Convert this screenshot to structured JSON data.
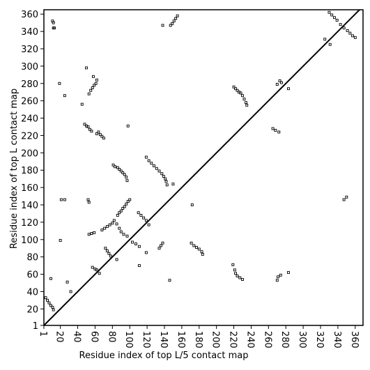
{
  "chart_data": {
    "type": "scatter",
    "x_label": "Residue index of top L/5 contact map",
    "y_label": "Residue index of top L contact map",
    "color": "#000000",
    "diagonal": true,
    "xlim": [
      1,
      369
    ],
    "ylim": [
      1,
      365
    ],
    "xticks": [
      1,
      20,
      40,
      60,
      80,
      100,
      120,
      140,
      160,
      180,
      200,
      220,
      240,
      260,
      280,
      300,
      320,
      340,
      360
    ],
    "yticks": [
      1,
      20,
      40,
      60,
      80,
      100,
      120,
      140,
      160,
      180,
      200,
      220,
      240,
      260,
      280,
      300,
      320,
      340,
      360
    ],
    "x": [
      11,
      12,
      12,
      13,
      45,
      50,
      53,
      55,
      57,
      59,
      61,
      62,
      58,
      48,
      50,
      52,
      54,
      56,
      62,
      64,
      66,
      68,
      70,
      98,
      147,
      149,
      151,
      153,
      155,
      138,
      81,
      83,
      86,
      88,
      90,
      92,
      94,
      96,
      97,
      119,
      122,
      125,
      128,
      131,
      134,
      137,
      139,
      141,
      142,
      143,
      150,
      86,
      88,
      90,
      92,
      94,
      96,
      98,
      100,
      52,
      53,
      21,
      25,
      68,
      71,
      74,
      77,
      80,
      53,
      56,
      59,
      220,
      222,
      224,
      226,
      228,
      230,
      232,
      234,
      235,
      270,
      273,
      275,
      265,
      268,
      272,
      283,
      325,
      331,
      330,
      333,
      336,
      339,
      343,
      347,
      351,
      354,
      357,
      360,
      19,
      25,
      3,
      5,
      7,
      9,
      11,
      12,
      9,
      28,
      32,
      20,
      57,
      60,
      62,
      65,
      72,
      74,
      76,
      78,
      85,
      82,
      85,
      88,
      90,
      93,
      97,
      103,
      107,
      111,
      110,
      113,
      116,
      119,
      122,
      119,
      111,
      134,
      136,
      138,
      146,
      171,
      174,
      177,
      180,
      183,
      184,
      172,
      219,
      221,
      222,
      224,
      227,
      230,
      270,
      271,
      274,
      283,
      347,
      350
    ],
    "values": [
      352,
      350,
      344,
      344,
      256,
      298,
      268,
      272,
      275,
      278,
      280,
      284,
      288,
      233,
      231,
      230,
      227,
      225,
      222,
      224,
      221,
      219,
      217,
      231,
      347,
      349,
      352,
      355,
      358,
      347,
      186,
      184,
      183,
      181,
      179,
      177,
      175,
      172,
      168,
      195,
      191,
      188,
      185,
      182,
      179,
      176,
      173,
      170,
      167,
      163,
      164,
      128,
      131,
      133,
      136,
      138,
      141,
      144,
      146,
      146,
      143,
      146,
      146,
      111,
      113,
      115,
      117,
      119,
      106,
      107,
      108,
      276,
      274,
      272,
      270,
      269,
      266,
      262,
      258,
      255,
      279,
      283,
      281,
      228,
      226,
      224,
      274,
      331,
      325,
      362,
      359,
      356,
      353,
      348,
      344,
      341,
      338,
      335,
      333,
      280,
      266,
      33,
      30,
      27,
      24,
      22,
      19,
      55,
      51,
      40,
      99,
      68,
      66,
      65,
      61,
      90,
      87,
      84,
      81,
      77,
      122,
      118,
      113,
      109,
      106,
      104,
      97,
      95,
      92,
      131,
      128,
      125,
      122,
      117,
      85,
      70,
      90,
      93,
      96,
      53,
      96,
      93,
      91,
      89,
      86,
      83,
      140,
      71,
      65,
      61,
      58,
      56,
      54,
      53,
      57,
      59,
      62,
      146,
      149
    ]
  }
}
